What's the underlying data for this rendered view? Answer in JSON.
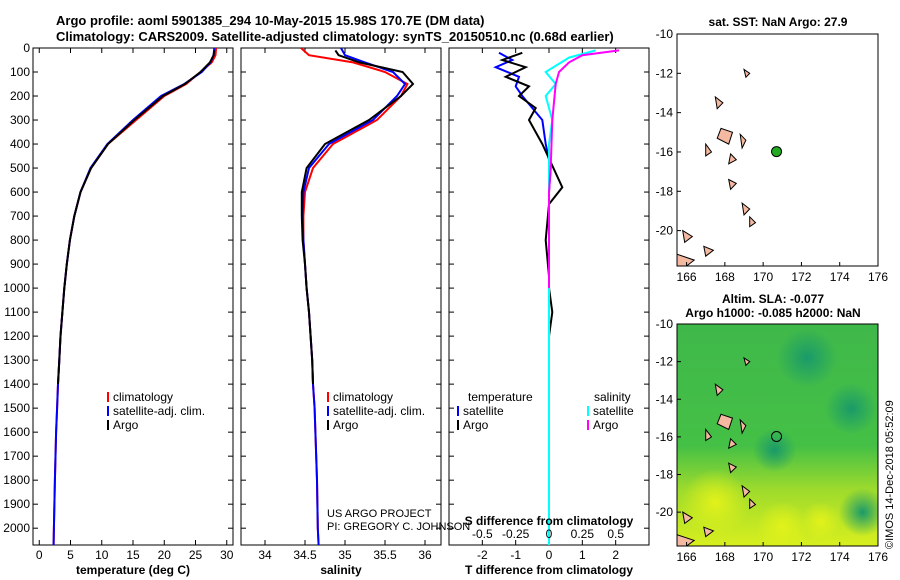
{
  "title_line1": "Argo profile: aoml 5901385_294 10-May-2015 15.98S 170.7E (DM data)",
  "title_line2": "Climatology: CARS2009. Satellite-adjusted climatology: synTS_20150510.nc (0.68d earlier)",
  "credit": "US ARGO PROJECT\nPI: GREGORY C. JOHNSON",
  "side_stamp": "©IMOS 14-Dec-2018 05:52:09",
  "colors": {
    "climatology": "#ff0000",
    "satellite": "#0000ff",
    "argo": "#000000",
    "t_sat": "#0000ff",
    "s_sat": "#00ffff",
    "s_argo": "#ff00ff",
    "land": "#f5b8a0",
    "float_marker": "#22aa22"
  },
  "chart_data": [
    {
      "type": "line",
      "panel": "temperature",
      "xlabel": "temperature (deg C)",
      "ylabel": "",
      "xlim": [
        -1,
        31
      ],
      "ylim": [
        2070,
        0
      ],
      "xticks": [
        0,
        5,
        10,
        15,
        20,
        25,
        30
      ],
      "yticks": [
        0,
        100,
        200,
        300,
        400,
        500,
        600,
        700,
        800,
        900,
        1000,
        1100,
        1200,
        1300,
        1400,
        1500,
        1600,
        1700,
        1800,
        1900,
        2000
      ],
      "legend": [
        "climatology",
        "satellite-adj. clim.",
        "Argo"
      ],
      "series": [
        {
          "name": "climatology",
          "color": "#ff0000",
          "x": [
            28.3,
            28.2,
            27.6,
            25.8,
            23.5,
            20.0,
            15.5,
            11.0,
            8.3,
            6.6,
            5.6,
            4.9,
            4.4,
            4.0,
            3.7,
            3.4,
            3.2,
            3.0,
            2.85,
            2.7,
            2.6,
            2.5,
            2.35,
            2.3
          ],
          "y": [
            0,
            30,
            60,
            100,
            150,
            200,
            300,
            400,
            500,
            600,
            700,
            800,
            900,
            1000,
            1100,
            1200,
            1300,
            1400,
            1500,
            1600,
            1700,
            1800,
            2000,
            2070
          ]
        },
        {
          "name": "satellite-adj. clim.",
          "color": "#0000ff",
          "x": [
            28.0,
            27.9,
            27.4,
            26.0,
            23.2,
            19.5,
            15.0,
            10.9,
            8.2,
            6.6,
            5.6,
            4.9,
            4.4,
            4.0,
            3.7,
            3.4,
            3.2,
            3.0,
            2.85,
            2.7,
            2.6,
            2.5,
            2.35,
            2.3
          ],
          "y": [
            0,
            30,
            60,
            100,
            150,
            200,
            300,
            400,
            500,
            600,
            700,
            800,
            900,
            1000,
            1100,
            1200,
            1300,
            1400,
            1500,
            1600,
            1700,
            1800,
            2000,
            2070
          ]
        },
        {
          "name": "Argo",
          "color": "#000000",
          "x": [
            28.0,
            27.9,
            27.3,
            25.8,
            23.3,
            19.8,
            15.2,
            11.0,
            8.3,
            6.6,
            5.6,
            4.9,
            4.4,
            4.0,
            3.7,
            3.4,
            3.2,
            3.0
          ],
          "y": [
            10,
            30,
            60,
            100,
            150,
            200,
            300,
            400,
            500,
            600,
            700,
            800,
            900,
            1000,
            1100,
            1200,
            1300,
            1400
          ]
        }
      ]
    },
    {
      "type": "line",
      "panel": "salinity",
      "xlabel": "salinity",
      "ylabel": "",
      "xlim": [
        33.7,
        36.2
      ],
      "ylim": [
        2070,
        0
      ],
      "xticks": [
        34,
        34.5,
        35,
        35.5,
        36
      ],
      "legend": [
        "climatology",
        "satellite-adj. clim.",
        "Argo"
      ],
      "series": [
        {
          "name": "climatology",
          "color": "#ff0000",
          "x": [
            34.45,
            34.55,
            35.1,
            35.5,
            35.78,
            35.7,
            35.4,
            34.85,
            34.6,
            34.5,
            34.48,
            34.48,
            34.5,
            34.52,
            34.55,
            34.57,
            34.59,
            34.6,
            34.62,
            34.63,
            34.64,
            34.65,
            34.66,
            34.67
          ],
          "y": [
            0,
            30,
            60,
            100,
            150,
            200,
            300,
            400,
            500,
            600,
            700,
            800,
            900,
            1000,
            1100,
            1200,
            1300,
            1400,
            1500,
            1600,
            1700,
            1800,
            2000,
            2070
          ]
        },
        {
          "name": "satellite-adj. clim.",
          "color": "#0000ff",
          "x": [
            34.95,
            35.0,
            35.25,
            35.6,
            35.75,
            35.65,
            35.35,
            34.8,
            34.55,
            34.48,
            34.47,
            34.48,
            34.5,
            34.52,
            34.55,
            34.57,
            34.59,
            34.6,
            34.62,
            34.63,
            34.64,
            34.65,
            34.66,
            34.67
          ],
          "y": [
            0,
            30,
            60,
            100,
            150,
            200,
            300,
            400,
            500,
            600,
            700,
            800,
            900,
            1000,
            1100,
            1200,
            1300,
            1400,
            1500,
            1600,
            1700,
            1800,
            2000,
            2070
          ]
        },
        {
          "name": "Argo",
          "color": "#000000",
          "x": [
            34.88,
            34.92,
            35.18,
            35.72,
            35.85,
            35.7,
            35.3,
            34.75,
            34.52,
            34.46,
            34.46,
            34.47,
            34.5,
            34.52,
            34.55,
            34.57,
            34.59,
            34.6
          ],
          "y": [
            10,
            30,
            60,
            100,
            150,
            200,
            300,
            400,
            500,
            600,
            700,
            800,
            900,
            1000,
            1100,
            1200,
            1300,
            1400
          ]
        }
      ]
    },
    {
      "type": "line",
      "panel": "difference",
      "xlabel": "T difference from climatology",
      "xlabel_top": "S difference from climatology",
      "xlim": [
        -3,
        3
      ],
      "ylim": [
        2070,
        0
      ],
      "xticks": [
        -2,
        -1,
        0,
        1,
        2
      ],
      "xticks_s": [
        -0.5,
        -0.25,
        0,
        0.25,
        0.5
      ],
      "xticks_s_labels": [
        "-0.5",
        "-0.25",
        "0",
        "0.25",
        "0.5"
      ],
      "legend_titles": [
        "temperature",
        "salinity"
      ],
      "legend": [
        "satellite",
        "Argo",
        "satellite",
        "Argo"
      ],
      "series": [
        {
          "name": "temperature satellite",
          "color": "#0000ff",
          "x": [
            -1.5,
            -1.1,
            -1.6,
            -0.9,
            -1.0,
            -0.8,
            -0.5,
            -0.2,
            -0.1,
            0.05,
            0.0,
            0.0,
            0.0,
            0.0,
            0.0,
            0.0,
            0.0,
            0.0,
            0.0,
            0.0,
            0.0
          ],
          "y": [
            20,
            50,
            80,
            120,
            160,
            200,
            250,
            300,
            400,
            500,
            600,
            700,
            800,
            900,
            1000,
            1100,
            1200,
            1300,
            1500,
            1800,
            2070
          ]
        },
        {
          "name": "temperature Argo",
          "color": "#000000",
          "x": [
            -0.8,
            -1.4,
            -0.7,
            -1.3,
            -0.6,
            -0.9,
            -0.4,
            -0.6,
            -0.2,
            0.4,
            0.0,
            -0.1,
            0.0,
            0.0,
            0.1,
            0.0,
            0.0
          ],
          "y": [
            20,
            50,
            80,
            120,
            160,
            200,
            250,
            300,
            400,
            580,
            650,
            800,
            950,
            1000,
            1100,
            1200,
            1400
          ]
        },
        {
          "name": "salinity satellite",
          "color": "#00ffff",
          "x": [
            1.4,
            0.6,
            -0.1,
            0.2,
            -0.1,
            0.1,
            0.0,
            0.0,
            0.0,
            0.0,
            0.0,
            0.0,
            0.0,
            0.0,
            0.0,
            0.0,
            0.0
          ],
          "y": [
            10,
            40,
            100,
            150,
            200,
            300,
            400,
            500,
            700,
            900,
            1100,
            1300,
            1500,
            1700,
            1900,
            2000,
            2070
          ]
        },
        {
          "name": "salinity Argo",
          "color": "#ff00ff",
          "x": [
            2.1,
            1.0,
            0.6,
            0.3,
            0.2,
            0.1,
            0.05,
            0.0,
            0.0,
            0.0,
            0.0
          ],
          "y": [
            10,
            30,
            60,
            100,
            150,
            300,
            500,
            600,
            700,
            800,
            1000
          ]
        }
      ]
    },
    {
      "type": "scatter",
      "panel": "map_sst",
      "title": "sat. SST: NaN Argo: 27.9",
      "xlim": [
        165.5,
        176
      ],
      "ylim": [
        -21.8,
        -10
      ],
      "xticks": [
        166,
        168,
        170,
        172,
        174,
        176
      ],
      "yticks": [
        -10,
        -12,
        -14,
        -16,
        -18,
        -20
      ],
      "float": {
        "lon": 170.7,
        "lat": -15.98
      }
    },
    {
      "type": "heatmap",
      "panel": "map_sla",
      "title_line1": "Altim. SLA: -0.077",
      "title_line2": "Argo h1000: -0.085 h2000: NaN",
      "xlim": [
        165.5,
        176
      ],
      "ylim": [
        -21.8,
        -10
      ],
      "xticks": [
        166,
        168,
        170,
        172,
        174,
        176
      ],
      "yticks": [
        -10,
        -12,
        -14,
        -16,
        -18,
        -20
      ],
      "float": {
        "lon": 170.7,
        "lat": -15.98
      }
    }
  ]
}
